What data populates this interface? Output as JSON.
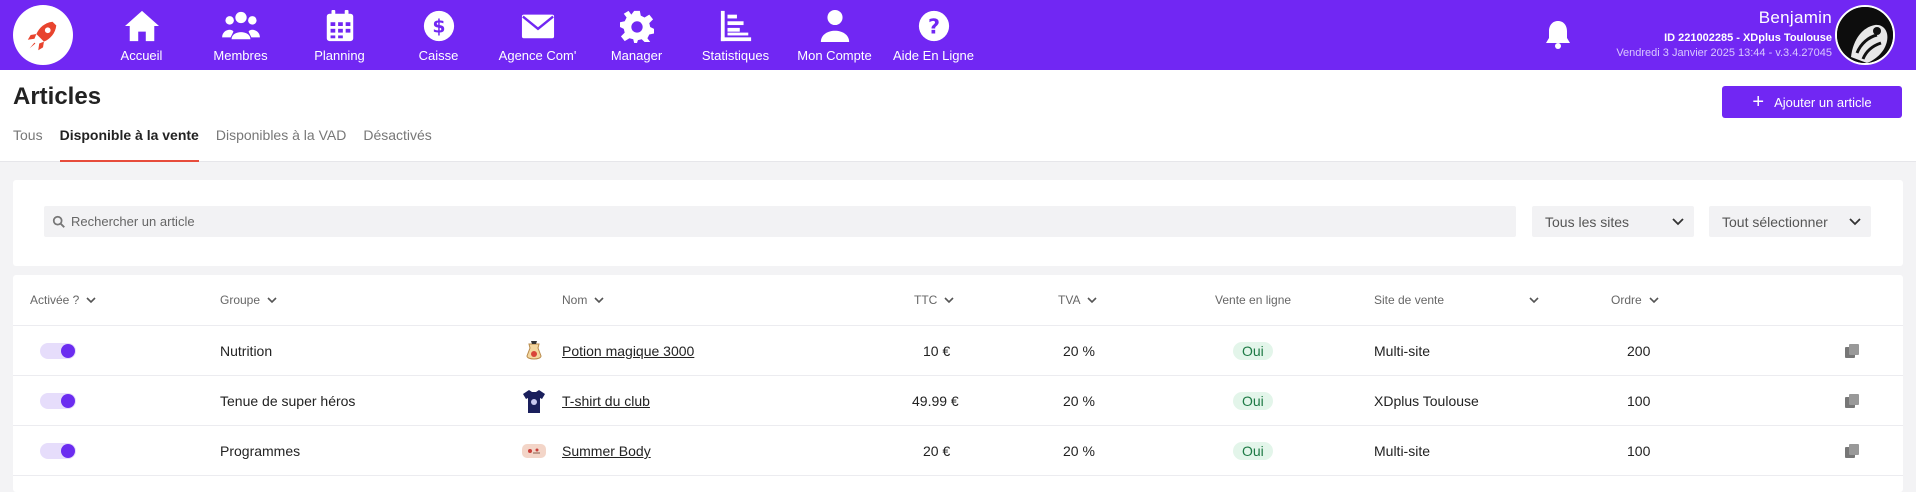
{
  "nav": {
    "items": [
      {
        "label": "Accueil",
        "icon": "home-icon"
      },
      {
        "label": "Membres",
        "icon": "users-icon"
      },
      {
        "label": "Planning",
        "icon": "calendar-icon"
      },
      {
        "label": "Caisse",
        "icon": "dollar-icon"
      },
      {
        "label": "Agence Com'",
        "icon": "envelope-icon"
      },
      {
        "label": "Manager",
        "icon": "gear-icon"
      },
      {
        "label": "Statistiques",
        "icon": "chart-icon"
      },
      {
        "label": "Mon Compte",
        "icon": "user-icon"
      },
      {
        "label": "Aide En Ligne",
        "icon": "question-icon"
      }
    ]
  },
  "user": {
    "name": "Benjamin",
    "id_line": "ID 221002285 - XDplus Toulouse",
    "date_line": "Vendredi 3 Janvier 2025 13:44 - v.3.4.27045"
  },
  "page": {
    "title": "Articles",
    "add_button": "Ajouter un article",
    "tabs": [
      "Tous",
      "Disponible à la vente",
      "Disponibles à la VAD",
      "Désactivés"
    ]
  },
  "filters": {
    "search_placeholder": "Rechercher un article",
    "sites": "Tous les sites",
    "select_all": "Tout sélectionner"
  },
  "table": {
    "headers": {
      "active": "Activée ?",
      "group": "Groupe",
      "name": "Nom",
      "ttc": "TTC",
      "tva": "TVA",
      "online": "Vente en ligne",
      "site": "Site de vente",
      "order": "Ordre"
    },
    "rows": [
      {
        "group": "Nutrition",
        "name": "Potion magique 3000",
        "ttc": "10 €",
        "tva": "20 %",
        "online": "Oui",
        "site": "Multi-site",
        "order": "200"
      },
      {
        "group": "Tenue de super héros",
        "name": "T-shirt du club",
        "ttc": "49.99 €",
        "tva": "20 %",
        "online": "Oui",
        "site": "XDplus Toulouse",
        "order": "100"
      },
      {
        "group": "Programmes",
        "name": "Summer Body",
        "ttc": "20 €",
        "tva": "20 %",
        "online": "Oui",
        "site": "Multi-site",
        "order": "100"
      }
    ]
  },
  "colors": {
    "brand": "#7127f3",
    "active_tab_underline": "#e74c3c",
    "badge_bg": "#e3f5ea"
  }
}
